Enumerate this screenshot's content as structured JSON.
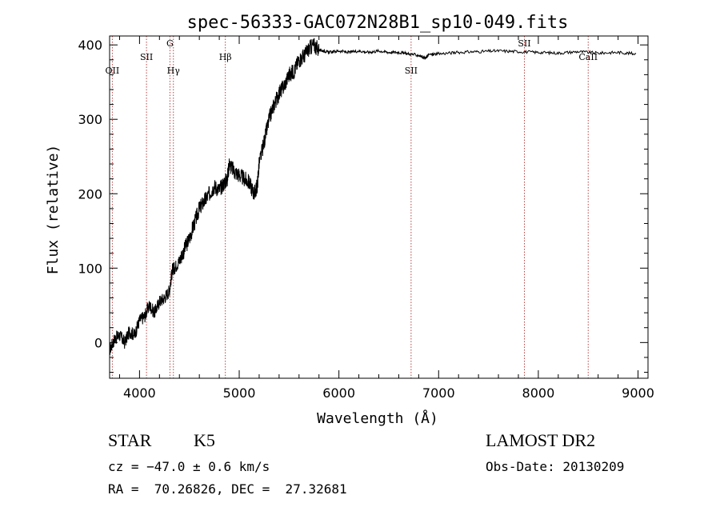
{
  "chart_data": {
    "type": "line",
    "title": "spec-56333-GAC072N28B1_sp10-049.fits",
    "xlabel": "Wavelength (Å)",
    "ylabel": "Flux (relative)",
    "xlim": [
      3700,
      9100
    ],
    "ylim": [
      -48,
      412
    ],
    "xticks": [
      4000,
      5000,
      6000,
      7000,
      8000,
      9000
    ],
    "yticks": [
      0,
      100,
      200,
      300,
      400
    ],
    "grid": false,
    "line_color": "#000000",
    "marker_color": "#b03030",
    "series": [
      {
        "x": [
          3700,
          3750,
          3800,
          3850,
          3900,
          3950,
          4000,
          4050,
          4100,
          4150,
          4200,
          4250,
          4300,
          4330,
          4350,
          4400,
          4450,
          4500,
          4550,
          4600,
          4650,
          4700,
          4750,
          4800,
          4850,
          4880,
          4900,
          4950,
          5000,
          5050,
          5100,
          5150,
          5180,
          5200,
          5250,
          5300,
          5350,
          5400,
          5450,
          5500,
          5550,
          5600,
          5650,
          5700,
          5750,
          5800,
          5850,
          5900,
          6000,
          6100,
          6200,
          6300,
          6400,
          6500,
          6600,
          6700,
          6800,
          6870,
          6900,
          7000,
          7200,
          7400,
          7600,
          7800,
          8000,
          8200,
          8400,
          8600,
          8800,
          8980
        ],
        "y": [
          -10,
          5,
          10,
          0,
          15,
          10,
          30,
          35,
          50,
          40,
          55,
          60,
          70,
          98,
          100,
          110,
          125,
          140,
          160,
          180,
          190,
          200,
          210,
          205,
          215,
          220,
          240,
          230,
          225,
          220,
          215,
          200,
          210,
          240,
          270,
          300,
          320,
          335,
          345,
          360,
          365,
          380,
          385,
          395,
          400,
          393,
          392,
          390,
          392,
          390,
          392,
          390,
          392,
          390,
          390,
          388,
          386,
          382,
          387,
          388,
          390,
          391,
          392,
          391,
          390,
          389,
          391,
          389,
          390,
          388
        ]
      }
    ],
    "spectral_lines": [
      {
        "label": "OII",
        "x": 3727
      },
      {
        "label": "SII",
        "x": 4070
      },
      {
        "label": "G",
        "x": 4305
      },
      {
        "label": "Hγ",
        "x": 4340
      },
      {
        "label": "Hβ",
        "x": 4861
      },
      {
        "label": "SII",
        "x": 6724
      },
      {
        "label": "SII",
        "x": 7860
      },
      {
        "label": "CaII",
        "x": 8500
      }
    ]
  },
  "info": {
    "class": "STAR",
    "subclass": "K5",
    "survey": "LAMOST DR2",
    "cz": "cz = −47.0 ± 0.6 km/s",
    "obs_date": "Obs-Date: 20130209",
    "coords": "RA =  70.26826, DEC =  27.32681"
  }
}
